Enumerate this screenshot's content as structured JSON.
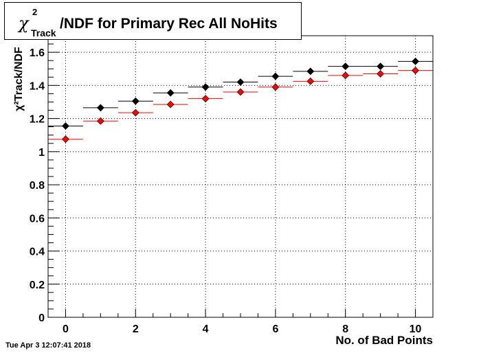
{
  "title": {
    "symbol": "χ",
    "superscript": "2",
    "subscript": "Track",
    "text": "/NDF for Primary Rec All NoHits"
  },
  "footer": {
    "timestamp": "Tue Apr  3 12:07:41 2018"
  },
  "chart_data": {
    "type": "scatter",
    "xlabel": "No. of Bad Points",
    "ylabel": "χ²Track/NDF",
    "xlim": [
      -0.5,
      10.5
    ],
    "ylim": [
      0,
      1.7
    ],
    "xticks": [
      0,
      2,
      4,
      6,
      8,
      10
    ],
    "yticks": [
      0,
      0.2,
      0.4,
      0.6,
      0.8,
      1,
      1.2,
      1.4,
      1.6
    ],
    "grid": true,
    "series": [
      {
        "color": "#000000",
        "x": [
          0,
          1,
          2,
          3,
          4,
          5,
          6,
          7,
          8,
          9,
          10
        ],
        "y": [
          1.155,
          1.265,
          1.305,
          1.355,
          1.39,
          1.42,
          1.455,
          1.485,
          1.515,
          1.515,
          1.545
        ]
      },
      {
        "color": "#ff0000",
        "x": [
          0,
          1,
          2,
          3,
          4,
          5,
          6,
          7,
          8,
          9,
          10
        ],
        "y": [
          1.075,
          1.185,
          1.235,
          1.285,
          1.32,
          1.36,
          1.39,
          1.425,
          1.46,
          1.47,
          1.49
        ]
      }
    ]
  }
}
